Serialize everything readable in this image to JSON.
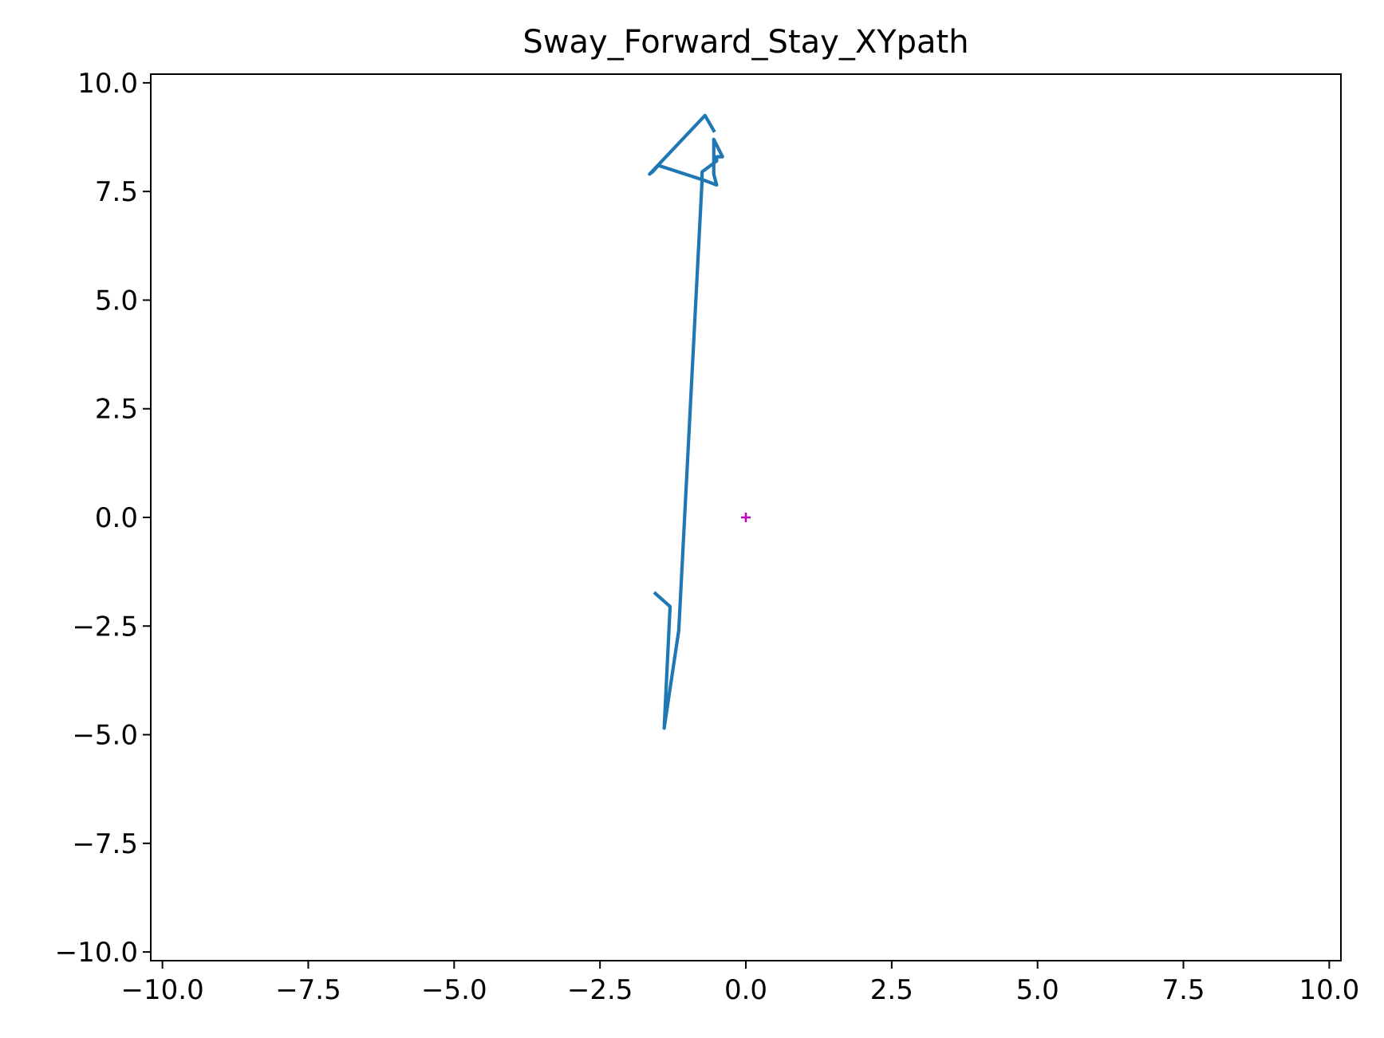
{
  "chart_data": {
    "type": "line",
    "title": "Sway_Forward_Stay_XYpath",
    "xlabel": "",
    "ylabel": "",
    "xlim": [
      -10.2,
      10.2
    ],
    "ylim": [
      -10.2,
      10.2
    ],
    "x_ticks": [
      -10.0,
      -7.5,
      -5.0,
      -2.5,
      0.0,
      2.5,
      5.0,
      7.5,
      10.0
    ],
    "x_tick_labels": [
      "−10.0",
      "−7.5",
      "−5.0",
      "−2.5",
      "0.0",
      "2.5",
      "5.0",
      "7.5",
      "10.0"
    ],
    "y_ticks": [
      10.0,
      7.5,
      5.0,
      2.5,
      0.0,
      -2.5,
      -5.0,
      -7.5,
      -10.0
    ],
    "y_tick_labels": [
      "10.0",
      "7.5",
      "5.0",
      "2.5",
      "0.0",
      "−2.5",
      "−5.0",
      "−7.5",
      "−10.0"
    ],
    "grid": false,
    "legend": "none",
    "series": [
      {
        "color": "#1f77b4",
        "marker": "none",
        "x": [
          -1.55,
          -1.3,
          -1.3,
          -1.4,
          -1.15,
          -0.75,
          -0.75,
          -0.5,
          -0.5,
          -0.4,
          -0.55,
          -0.55,
          -0.5,
          -0.7,
          -1.5,
          -1.6,
          -1.65,
          -0.7,
          -0.55
        ],
        "y": [
          -1.75,
          -2.05,
          -2.1,
          -4.85,
          -2.6,
          7.75,
          7.95,
          8.2,
          8.3,
          8.3,
          8.7,
          7.9,
          7.65,
          7.75,
          8.1,
          7.95,
          7.9,
          9.25,
          8.9
        ]
      },
      {
        "color": "#bf00bf",
        "marker": "plus",
        "x": [
          0.0
        ],
        "y": [
          0.0
        ]
      }
    ]
  }
}
